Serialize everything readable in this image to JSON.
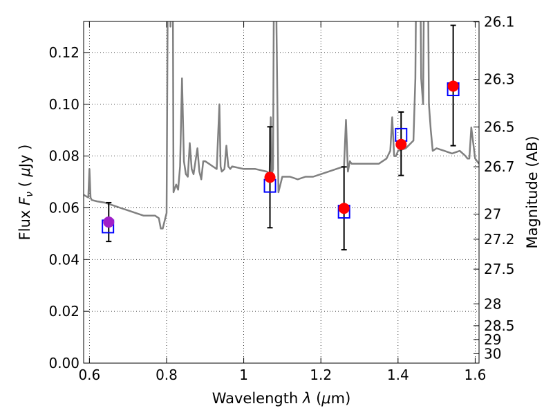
{
  "chart_data": {
    "type": "scatter",
    "xlabel": "Wavelength  λ (μm)",
    "ylabel": "Flux  F_ν  ( μJy )",
    "ylabel_parts": {
      "pre": "Flux ",
      "sym": "F",
      "sub": "ν",
      "mid": "  ( ",
      "mu": "μ",
      "post": "Jy )"
    },
    "xlabel_parts": {
      "pre": "Wavelength  ",
      "sym": "λ",
      "mid": " (",
      "mu": "μ",
      "post": "m)"
    },
    "y2label": "Magnitude (AB)",
    "xlim": [
      0.585,
      1.61
    ],
    "ylim": [
      0.0,
      0.132
    ],
    "x_ticks": [
      "0.6",
      "0.8",
      "1",
      "1.2",
      "1.4",
      "1.6"
    ],
    "y_ticks": [
      "0.00",
      "0.02",
      "0.04",
      "0.06",
      "0.08",
      "0.10",
      "0.12"
    ],
    "y2_ticks": [
      "26.1",
      "26.3",
      "26.5",
      "26.7",
      "27",
      "27.2",
      "27.5",
      "28",
      "28.5",
      "29",
      "30"
    ],
    "grid": true,
    "colors": {
      "model": "#808080",
      "model_points": "#0000ff",
      "observed_points": "#ff0000",
      "first_point": "#a020c8",
      "errorbar": "#000000"
    },
    "model_spectrum": {
      "x": [
        0.585,
        0.597,
        0.6,
        0.603,
        0.606,
        0.62,
        0.64,
        0.66,
        0.68,
        0.7,
        0.72,
        0.74,
        0.76,
        0.77,
        0.78,
        0.785,
        0.79,
        0.795,
        0.8,
        0.805,
        0.808,
        0.81,
        0.812,
        0.815,
        0.818,
        0.82,
        0.825,
        0.83,
        0.835,
        0.84,
        0.845,
        0.85,
        0.855,
        0.86,
        0.865,
        0.87,
        0.875,
        0.88,
        0.885,
        0.89,
        0.895,
        0.9,
        0.91,
        0.92,
        0.93,
        0.937,
        0.94,
        0.943,
        0.95,
        0.955,
        0.96,
        0.965,
        0.97,
        1.0,
        1.03,
        1.06,
        1.067,
        1.07,
        1.073,
        1.076,
        1.08,
        1.083,
        1.085,
        1.09,
        1.095,
        1.1,
        1.12,
        1.14,
        1.16,
        1.18,
        1.2,
        1.22,
        1.24,
        1.26,
        1.265,
        1.27,
        1.275,
        1.28,
        1.3,
        1.33,
        1.35,
        1.37,
        1.38,
        1.385,
        1.39,
        1.395,
        1.4,
        1.42,
        1.44,
        1.445,
        1.45,
        1.455,
        1.46,
        1.465,
        1.47,
        1.475,
        1.48,
        1.485,
        1.49,
        1.5,
        1.52,
        1.54,
        1.56,
        1.575,
        1.58,
        1.585,
        1.59,
        1.595,
        1.6,
        1.61
      ],
      "y": [
        0.065,
        0.064,
        0.075,
        0.064,
        0.063,
        0.0625,
        0.062,
        0.061,
        0.06,
        0.059,
        0.058,
        0.057,
        0.057,
        0.057,
        0.056,
        0.052,
        0.052,
        0.055,
        0.058,
        0.2,
        0.2,
        0.13,
        0.2,
        0.2,
        0.066,
        0.067,
        0.069,
        0.067,
        0.076,
        0.11,
        0.078,
        0.073,
        0.072,
        0.085,
        0.075,
        0.073,
        0.078,
        0.083,
        0.074,
        0.071,
        0.078,
        0.078,
        0.077,
        0.076,
        0.075,
        0.1,
        0.076,
        0.074,
        0.075,
        0.084,
        0.076,
        0.075,
        0.076,
        0.075,
        0.075,
        0.074,
        0.073,
        0.095,
        0.073,
        0.075,
        0.2,
        0.2,
        0.13,
        0.066,
        0.069,
        0.072,
        0.072,
        0.071,
        0.072,
        0.072,
        0.073,
        0.074,
        0.075,
        0.076,
        0.094,
        0.074,
        0.078,
        0.077,
        0.077,
        0.077,
        0.077,
        0.079,
        0.082,
        0.095,
        0.08,
        0.08,
        0.082,
        0.083,
        0.086,
        0.11,
        0.2,
        0.2,
        0.11,
        0.1,
        0.2,
        0.2,
        0.1,
        0.09,
        0.082,
        0.083,
        0.082,
        0.081,
        0.082,
        0.08,
        0.079,
        0.079,
        0.091,
        0.085,
        0.079,
        0.077
      ]
    },
    "series": [
      {
        "marker": "square",
        "color": "#0000ff",
        "x": [
          0.648,
          1.068,
          1.26,
          1.408,
          1.543
        ],
        "y": [
          0.0528,
          0.0685,
          0.0585,
          0.0882,
          0.1058
        ]
      },
      {
        "marker": "circle",
        "color": "#ff0000",
        "x": [
          0.65,
          1.068,
          1.26,
          1.408,
          1.543
        ],
        "y": [
          0.0545,
          0.0718,
          0.0598,
          0.0845,
          0.107
        ],
        "yerr_low": [
          0.0075,
          0.0195,
          0.016,
          0.012,
          0.023
        ],
        "yerr_high": [
          0.0075,
          0.0195,
          0.016,
          0.0125,
          0.0235
        ]
      }
    ]
  }
}
